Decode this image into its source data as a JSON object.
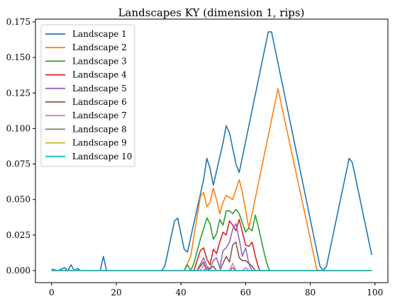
{
  "chart_data": {
    "type": "line",
    "title": "Landscapes KY (dimension 1, rips)",
    "xlabel": "",
    "ylabel": "",
    "xlim": [
      -5,
      104
    ],
    "ylim": [
      -0.0085,
      0.177
    ],
    "xticks": [
      0,
      20,
      40,
      60,
      80,
      100
    ],
    "yticks": [
      0.0,
      0.025,
      0.05,
      0.075,
      0.1,
      0.125,
      0.15,
      0.175
    ],
    "ytick_labels": [
      "0.000",
      "0.025",
      "0.050",
      "0.075",
      "0.100",
      "0.125",
      "0.150",
      "0.175"
    ],
    "legend_position": "upper-left",
    "grid": false,
    "series": [
      {
        "name": "Landscape 1",
        "color": "#1f77b4",
        "points": [
          [
            0,
            0.001
          ],
          [
            2,
            0
          ],
          [
            4,
            0.002
          ],
          [
            5,
            0
          ],
          [
            6,
            0.004
          ],
          [
            7,
            0
          ],
          [
            8,
            0.0015
          ],
          [
            9,
            0
          ],
          [
            15,
            0
          ],
          [
            16,
            0.01
          ],
          [
            17,
            0
          ],
          [
            34,
            0
          ],
          [
            35,
            0.003
          ],
          [
            38,
            0.035
          ],
          [
            39,
            0.037
          ],
          [
            41,
            0.015
          ],
          [
            42,
            0.013
          ],
          [
            47,
            0.064
          ],
          [
            48,
            0.079
          ],
          [
            49,
            0.072
          ],
          [
            50,
            0.06
          ],
          [
            53,
            0.09
          ],
          [
            54,
            0.102
          ],
          [
            55,
            0.097
          ],
          [
            57,
            0.075
          ],
          [
            58,
            0.069
          ],
          [
            67,
            0.168
          ],
          [
            68,
            0.168
          ],
          [
            82,
            0.014
          ],
          [
            83,
            0.003
          ],
          [
            84,
            0
          ],
          [
            85,
            0.003
          ],
          [
            92,
            0.079
          ],
          [
            93,
            0.076
          ],
          [
            99,
            0.011
          ]
        ]
      },
      {
        "name": "Landscape 2",
        "color": "#ff7f0e",
        "points": [
          [
            0,
            0
          ],
          [
            41,
            0
          ],
          [
            43,
            0.01
          ],
          [
            46,
            0.052
          ],
          [
            47,
            0.055
          ],
          [
            48,
            0.045
          ],
          [
            49,
            0.048
          ],
          [
            50,
            0.058
          ],
          [
            51,
            0.05
          ],
          [
            52,
            0.04
          ],
          [
            53,
            0.048
          ],
          [
            54,
            0.053
          ],
          [
            56,
            0.05
          ],
          [
            58,
            0.064
          ],
          [
            59,
            0.055
          ],
          [
            61,
            0.03
          ],
          [
            62,
            0.04
          ],
          [
            70,
            0.128
          ],
          [
            82,
            0.001
          ],
          [
            82.5,
            0
          ],
          [
            99,
            0
          ]
        ]
      },
      {
        "name": "Landscape 3",
        "color": "#2ca02c",
        "points": [
          [
            0,
            0
          ],
          [
            41,
            0
          ],
          [
            42,
            0.004
          ],
          [
            43,
            0
          ],
          [
            44,
            0.005
          ],
          [
            46,
            0.022
          ],
          [
            48,
            0.037
          ],
          [
            49,
            0.033
          ],
          [
            50,
            0.022
          ],
          [
            51,
            0.026
          ],
          [
            52,
            0.036
          ],
          [
            53,
            0.032
          ],
          [
            54,
            0.042
          ],
          [
            55,
            0.042
          ],
          [
            56,
            0.04
          ],
          [
            57,
            0.043
          ],
          [
            58,
            0.04
          ],
          [
            60,
            0.027
          ],
          [
            61,
            0.03
          ],
          [
            62,
            0.028
          ],
          [
            63,
            0.039
          ],
          [
            64,
            0.03
          ],
          [
            66,
            0.01
          ],
          [
            67,
            0.002
          ],
          [
            67.5,
            0
          ],
          [
            99,
            0
          ]
        ]
      },
      {
        "name": "Landscape 4",
        "color": "#d62728",
        "points": [
          [
            0,
            0
          ],
          [
            44,
            0
          ],
          [
            46,
            0.014
          ],
          [
            47,
            0.016
          ],
          [
            48,
            0.008
          ],
          [
            49,
            0.004
          ],
          [
            50,
            0.015
          ],
          [
            51,
            0.012
          ],
          [
            52,
            0.02
          ],
          [
            53,
            0.027
          ],
          [
            54,
            0.025
          ],
          [
            55,
            0.035
          ],
          [
            56,
            0.032
          ],
          [
            57,
            0.028
          ],
          [
            58,
            0.036
          ],
          [
            59,
            0.027
          ],
          [
            60,
            0.018
          ],
          [
            61,
            0.017
          ],
          [
            62,
            0.02
          ],
          [
            63,
            0.01
          ],
          [
            64,
            0.002
          ],
          [
            64.5,
            0
          ],
          [
            99,
            0
          ]
        ]
      },
      {
        "name": "Landscape 5",
        "color": "#9467bd",
        "points": [
          [
            0,
            0
          ],
          [
            45,
            0
          ],
          [
            47,
            0.009
          ],
          [
            48,
            0.003
          ],
          [
            49,
            0.001
          ],
          [
            50,
            0.007
          ],
          [
            51,
            0.009
          ],
          [
            52,
            0.002
          ],
          [
            53,
            0.014
          ],
          [
            54,
            0.016
          ],
          [
            55,
            0.02
          ],
          [
            56,
            0.029
          ],
          [
            57,
            0.033
          ],
          [
            58,
            0.022
          ],
          [
            59,
            0.01
          ],
          [
            60,
            0.016
          ],
          [
            61,
            0.005
          ],
          [
            62,
            0
          ],
          [
            99,
            0
          ]
        ]
      },
      {
        "name": "Landscape 6",
        "color": "#8c564b",
        "points": [
          [
            0,
            0
          ],
          [
            45,
            0
          ],
          [
            46,
            0.003
          ],
          [
            47,
            0.006
          ],
          [
            48,
            0
          ],
          [
            50,
            0.003
          ],
          [
            51,
            0
          ],
          [
            52,
            0
          ],
          [
            54,
            0.01
          ],
          [
            55,
            0.006
          ],
          [
            56,
            0.018
          ],
          [
            57,
            0.02
          ],
          [
            58,
            0.009
          ],
          [
            59,
            0.007
          ],
          [
            60,
            0.007
          ],
          [
            61,
            0.005
          ],
          [
            62,
            0.003
          ],
          [
            63,
            0
          ],
          [
            99,
            0
          ]
        ]
      },
      {
        "name": "Landscape 7",
        "color": "#e377c2",
        "points": [
          [
            0,
            0
          ],
          [
            46,
            0
          ],
          [
            47,
            0.004
          ],
          [
            48,
            0
          ],
          [
            55,
            0
          ],
          [
            56,
            0.005
          ],
          [
            57,
            0
          ],
          [
            59,
            0
          ],
          [
            60,
            0.002
          ],
          [
            61,
            0
          ],
          [
            99,
            0
          ]
        ]
      },
      {
        "name": "Landscape 8",
        "color": "#7f7f7f",
        "points": [
          [
            0,
            0
          ],
          [
            47,
            0
          ],
          [
            48,
            0.002
          ],
          [
            49,
            0
          ],
          [
            55,
            0
          ],
          [
            56,
            0.002
          ],
          [
            57,
            0
          ],
          [
            99,
            0
          ]
        ]
      },
      {
        "name": "Landscape 9",
        "color": "#bcbd22",
        "points": [
          [
            0,
            0
          ],
          [
            99,
            0
          ]
        ]
      },
      {
        "name": "Landscape 10",
        "color": "#17becf",
        "points": [
          [
            0,
            0
          ],
          [
            99,
            0
          ]
        ]
      }
    ]
  }
}
